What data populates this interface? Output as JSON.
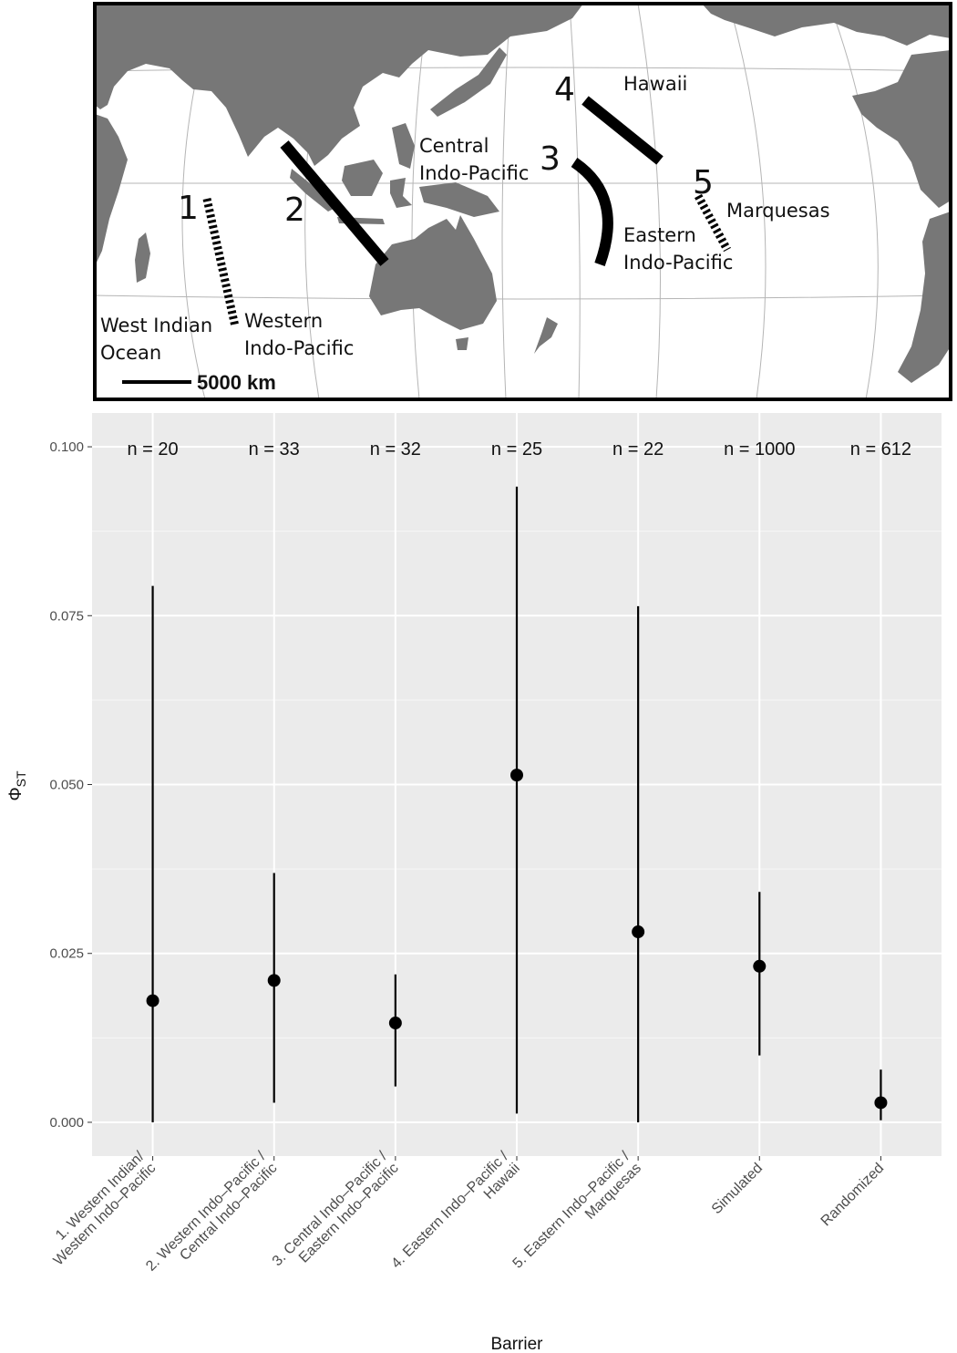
{
  "map": {
    "scale_bar_label": "5000 km",
    "land_color": "#777777",
    "barriers": [
      {
        "number": "1",
        "style": "dashed"
      },
      {
        "number": "2",
        "style": "solid"
      },
      {
        "number": "3",
        "style": "solid-arc"
      },
      {
        "number": "4",
        "style": "solid"
      },
      {
        "number": "5",
        "style": "dashed"
      }
    ],
    "region_labels": {
      "west_indian_ocean": [
        "West Indian",
        "Ocean"
      ],
      "western_indo_pacific": [
        "Western",
        "Indo-Pacific"
      ],
      "central_indo_pacific": [
        "Central",
        "Indo-Pacific"
      ],
      "eastern_indo_pacific": [
        "Eastern",
        "Indo-Pacific"
      ],
      "hawaii": "Hawaii",
      "marquesas": "Marquesas"
    }
  },
  "chart_data": {
    "type": "scatter",
    "style": "point estimate with vertical range",
    "xlabel": "Barrier",
    "ylabel": "Φ",
    "ylabel_subscript": "ST",
    "ylim": [
      -0.005,
      0.105
    ],
    "yticks": [
      0.0,
      0.025,
      0.05,
      0.075,
      0.1
    ],
    "ytick_labels": [
      "0.000",
      "0.025",
      "0.050",
      "0.075",
      "0.100"
    ],
    "panel_background": "#ebebeb",
    "grid": true,
    "categories": [
      [
        "1. Western Indian/",
        "Western Indo–Pacific"
      ],
      [
        "2. Western Indo–Pacific /",
        "Central Indo–Pacific"
      ],
      [
        "3. Central Indo–Pacific /",
        "Eastern Indo–Pacific"
      ],
      [
        "4. Eastern Indo–Pacific /",
        "Hawaii"
      ],
      [
        "5. Eastern Indo–Pacific /",
        "Marquesas"
      ],
      [
        "Simulated"
      ],
      [
        "Randomized"
      ]
    ],
    "n_labels": [
      "n = 20",
      "n = 33",
      "n = 32",
      "n = 25",
      "n = 22",
      "n = 1000",
      "n = 612"
    ],
    "values": [
      0.018,
      0.021,
      0.0147,
      0.0514,
      0.0282,
      0.0231,
      0.0029
    ],
    "lower": [
      0.0,
      0.0029,
      0.0053,
      0.0013,
      0.0,
      0.0099,
      0.0003
    ],
    "upper": [
      0.0794,
      0.0369,
      0.0219,
      0.0941,
      0.0764,
      0.0341,
      0.0078
    ]
  }
}
